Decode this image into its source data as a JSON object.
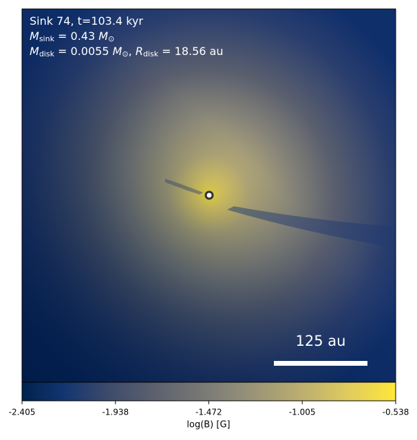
{
  "chart_data": {
    "type": "heatmap",
    "annotation_lines": [
      [
        {
          "text": "Sink 74, t=103.4 kyr",
          "style": "normal"
        }
      ],
      [
        {
          "text": "M",
          "style": "italic"
        },
        {
          "text": "sink",
          "style": "sub"
        },
        {
          "text": " = 0.43 ",
          "style": "normal"
        },
        {
          "text": "M",
          "style": "italic"
        },
        {
          "text": "⊙",
          "style": "sub"
        }
      ],
      [
        {
          "text": "M",
          "style": "italic"
        },
        {
          "text": "disk",
          "style": "sub"
        },
        {
          "text": " = 0.0055 ",
          "style": "normal"
        },
        {
          "text": "M",
          "style": "italic"
        },
        {
          "text": "⊙",
          "style": "sub"
        },
        {
          "text": ", ",
          "style": "normal"
        },
        {
          "text": "R",
          "style": "italic"
        },
        {
          "text": "disk",
          "style": "sub"
        },
        {
          "text": " = 18.56 au",
          "style": "normal"
        }
      ]
    ],
    "scale_bar_label": "125 au",
    "colorbar_label": "log(B) [G]",
    "clim": [
      -2.405,
      -0.538
    ],
    "cticks": [
      -2.405,
      -1.938,
      -1.472,
      -1.005,
      -0.538
    ],
    "colormap": [
      "#00224e",
      "#123570",
      "#3b496c",
      "#575d6d",
      "#707173",
      "#8a8779",
      "#a69d75",
      "#c4b56c",
      "#e4cf5b",
      "#fee838"
    ]
  }
}
